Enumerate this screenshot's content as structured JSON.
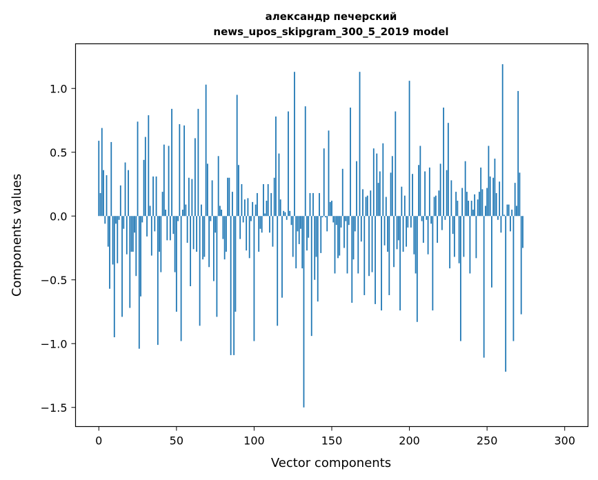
{
  "chart_data": {
    "type": "bar",
    "title_line1": "александр печерский",
    "title_line2": "news_upos_skipgram_300_5_2019 model",
    "xlabel": "Vector components",
    "ylabel": "Components values",
    "xlim": [
      -15,
      315
    ],
    "ylim": [
      -1.65,
      1.35
    ],
    "xticks": [
      0,
      50,
      100,
      150,
      200,
      250,
      300
    ],
    "xtick_labels": [
      "0",
      "50",
      "100",
      "150",
      "200",
      "250",
      "300"
    ],
    "yticks": [
      -1.5,
      -1.0,
      -0.5,
      0.0,
      0.5,
      1.0
    ],
    "ytick_labels": [
      "−1.5",
      "−1.0",
      "−0.5",
      "0.0",
      "0.5",
      "1.0"
    ],
    "bar_color": "#1f77b4",
    "values": [
      0.59,
      0.18,
      0.69,
      0.36,
      -0.06,
      0.32,
      -0.24,
      -0.57,
      0.58,
      -0.38,
      -0.95,
      -0.06,
      -0.37,
      -0.03,
      0.24,
      -0.79,
      -0.1,
      0.42,
      -0.3,
      0.36,
      -0.72,
      -0.28,
      -0.28,
      -0.13,
      -0.47,
      0.74,
      -1.04,
      -0.63,
      -0.05,
      0.44,
      0.62,
      -0.16,
      0.79,
      0.08,
      -0.31,
      0.31,
      -0.12,
      0.31,
      -1.01,
      -0.28,
      -0.44,
      0.19,
      0.56,
      0.05,
      -0.19,
      0.55,
      -0.19,
      0.84,
      -0.14,
      -0.44,
      -0.75,
      -0.04,
      0.72,
      -0.98,
      0.05,
      0.71,
      0.09,
      -0.21,
      0.3,
      -0.55,
      0.29,
      -0.26,
      0.61,
      -0.28,
      0.84,
      -0.86,
      0.09,
      -0.34,
      -0.32,
      1.03,
      0.41,
      -0.4,
      -0.04,
      0.28,
      -0.51,
      -0.13,
      -0.79,
      0.47,
      0.08,
      0.05,
      -0.18,
      -0.34,
      -0.28,
      0.3,
      0.3,
      -1.09,
      0.19,
      -1.09,
      -0.75,
      0.95,
      0.4,
      -0.18,
      0.25,
      -0.05,
      0.13,
      -0.27,
      0.14,
      -0.33,
      -0.04,
      0.11,
      -0.98,
      0.09,
      0.18,
      -0.28,
      -0.1,
      -0.13,
      0.25,
      0.02,
      0.12,
      0.25,
      -0.13,
      0.18,
      -0.24,
      0.3,
      0.78,
      -0.86,
      0.49,
      0.13,
      -0.64,
      0.04,
      0.03,
      -0.03,
      0.82,
      0.04,
      -0.07,
      -0.32,
      1.13,
      -0.41,
      -0.12,
      -0.22,
      -0.1,
      -0.41,
      -1.5,
      0.86,
      -0.27,
      -0.17,
      0.18,
      -0.94,
      0.18,
      -0.5,
      -0.32,
      -0.67,
      0.18,
      -0.29,
      -0.01,
      0.53,
      -0.01,
      -0.12,
      0.67,
      0.11,
      0.12,
      -0.05,
      -0.45,
      -0.07,
      -0.33,
      -0.31,
      -0.09,
      0.37,
      -0.25,
      -0.04,
      -0.45,
      -0.07,
      0.85,
      -0.68,
      -0.34,
      -0.12,
      0.43,
      -0.45,
      1.13,
      -0.2,
      0.21,
      -0.62,
      0.15,
      0.16,
      -0.47,
      0.2,
      -0.44,
      0.53,
      -0.69,
      0.49,
      0.26,
      0.35,
      -0.74,
      0.57,
      -0.23,
      0.15,
      -0.28,
      -0.62,
      0.34,
      0.47,
      -0.4,
      0.82,
      -0.26,
      -0.19,
      -0.74,
      0.23,
      -0.28,
      0.16,
      -0.24,
      -0.09,
      1.06,
      -0.09,
      0.33,
      -0.3,
      -0.45,
      -0.83,
      0.4,
      0.55,
      -0.04,
      -0.21,
      0.35,
      -0.03,
      -0.3,
      0.38,
      -0.06,
      -0.74,
      0.15,
      0.16,
      -0.21,
      0.2,
      0.41,
      -0.11,
      0.85,
      -0.03,
      0.36,
      0.73,
      -0.41,
      0.28,
      -0.14,
      -0.32,
      0.19,
      0.12,
      -0.37,
      -0.98,
      0.22,
      -0.32,
      0.43,
      0.19,
      0.12,
      -0.45,
      0.12,
      0.05,
      0.17,
      -0.33,
      0.13,
      0.19,
      0.38,
      0.21,
      -1.11,
      0.08,
      0.22,
      0.55,
      0.31,
      -0.56,
      0.3,
      0.45,
      0.18,
      -0.03,
      0.27,
      -0.13,
      1.19,
      0.01,
      -1.22,
      0.09,
      0.09,
      -0.12,
      0.05,
      -0.98,
      0.26,
      0.08,
      0.98,
      0.34,
      -0.77,
      -0.25
    ]
  }
}
